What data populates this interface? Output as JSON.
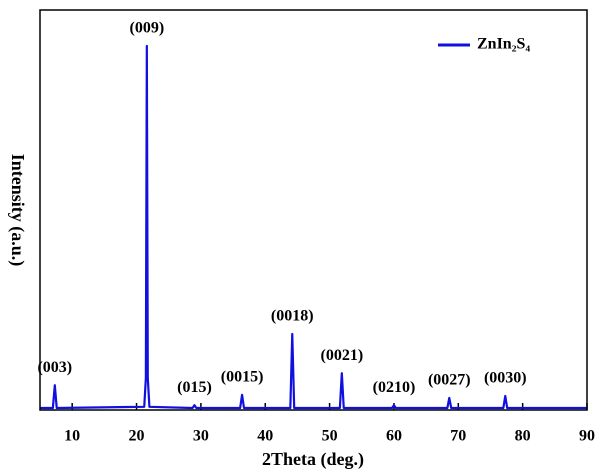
{
  "chart_data": {
    "type": "line",
    "x_label": "2Theta (deg.)",
    "y_label": "Intensity (a.u.)",
    "xlim": [
      5,
      90
    ],
    "ylim": [
      0,
      100
    ],
    "xticks": [
      10,
      20,
      30,
      40,
      50,
      60,
      70,
      80,
      90
    ],
    "legend": "upper right",
    "series": [
      {
        "name": "ZnIn₂S₄",
        "color": "#1010e0",
        "x": [
          5,
          7.0,
          7.3,
          7.6,
          21.2,
          21.45,
          21.6,
          21.75,
          22.0,
          28.7,
          29.0,
          29.3,
          36.1,
          36.4,
          36.7,
          43.9,
          44.2,
          44.5,
          51.6,
          51.9,
          52.2,
          59.7,
          60.0,
          60.3,
          68.3,
          68.6,
          68.9,
          77.0,
          77.3,
          77.6,
          90
        ],
        "values": [
          0.5,
          0.5,
          6.2,
          0.5,
          0.8,
          8,
          91,
          8,
          0.8,
          0.5,
          1.2,
          0.5,
          0.5,
          3.8,
          0.5,
          0.5,
          19,
          0.5,
          0.5,
          9.2,
          0.5,
          0.5,
          1.2,
          0.5,
          0.5,
          3,
          0.5,
          0.5,
          3.5,
          0.5,
          0.5
        ]
      }
    ],
    "peak_labels": [
      "(003)",
      "(009)",
      "(015)",
      "(0015)",
      "(0018)",
      "(0021)",
      "(0210)",
      "(0027)",
      "(0030)"
    ]
  }
}
